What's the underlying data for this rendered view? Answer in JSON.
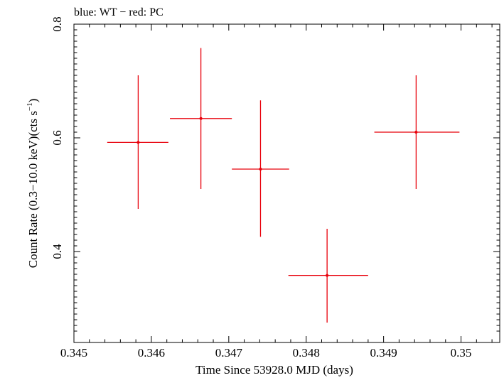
{
  "chart_data": {
    "type": "scatter",
    "title": "blue: WT − red: PC",
    "xlabel": "Time Since 53928.0 MJD (days)",
    "ylabel_main": "Count Rate (0.3−10.0 keV)(cts s",
    "ylabel_sup": "−1",
    "ylabel_close": ")",
    "xlim": [
      0.345,
      0.3505
    ],
    "ylim": [
      0.24,
      0.8
    ],
    "x_ticks": [
      {
        "value": 0.345,
        "label": "0.345"
      },
      {
        "value": 0.346,
        "label": "0.346"
      },
      {
        "value": 0.347,
        "label": "0.347"
      },
      {
        "value": 0.348,
        "label": "0.348"
      },
      {
        "value": 0.349,
        "label": "0.349"
      },
      {
        "value": 0.35,
        "label": "0.35"
      }
    ],
    "y_ticks": [
      {
        "value": 0.4,
        "label": "0.4"
      },
      {
        "value": 0.6,
        "label": "0.6"
      },
      {
        "value": 0.8,
        "label": "0.8"
      }
    ],
    "grid": false,
    "series": [
      {
        "color": "#e8000b",
        "points": [
          {
            "x": 0.34583,
            "y": 0.592,
            "xlo": 0.34543,
            "xhi": 0.34622,
            "ylo": 0.475,
            "yhi": 0.71
          },
          {
            "x": 0.34664,
            "y": 0.634,
            "xlo": 0.34624,
            "xhi": 0.34704,
            "ylo": 0.51,
            "yhi": 0.758
          },
          {
            "x": 0.34741,
            "y": 0.545,
            "xlo": 0.34704,
            "xhi": 0.34778,
            "ylo": 0.426,
            "yhi": 0.666
          },
          {
            "x": 0.34827,
            "y": 0.358,
            "xlo": 0.34777,
            "xhi": 0.3488,
            "ylo": 0.275,
            "yhi": 0.44
          },
          {
            "x": 0.34942,
            "y": 0.61,
            "xlo": 0.34888,
            "xhi": 0.34998,
            "ylo": 0.51,
            "yhi": 0.71
          }
        ]
      }
    ]
  }
}
